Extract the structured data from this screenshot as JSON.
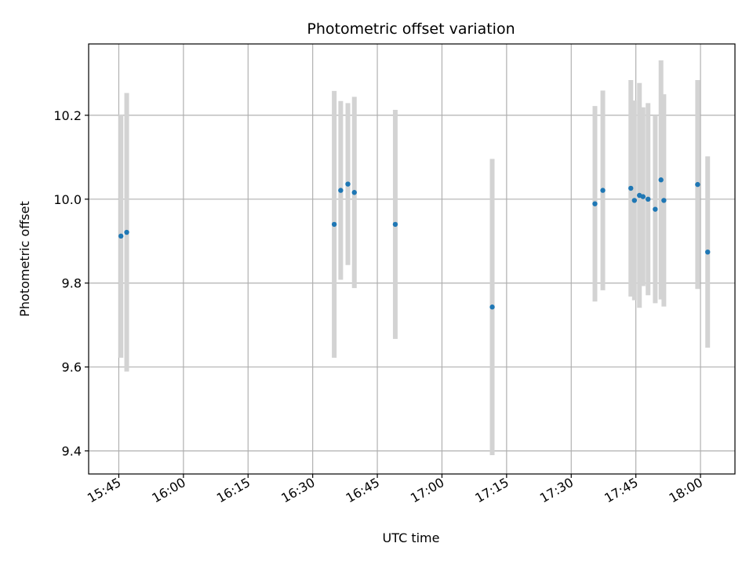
{
  "chart_data": {
    "type": "scatter",
    "title": "Photometric offset variation",
    "xlabel": "UTC time",
    "ylabel": "Photometric offset",
    "x_unit": "time HH:MM",
    "xlim": [
      "15:38",
      "18:08"
    ],
    "ylim": [
      9.345,
      10.37
    ],
    "x_ticks": [
      "15:45",
      "16:00",
      "16:15",
      "16:30",
      "16:45",
      "17:00",
      "17:15",
      "17:30",
      "17:45",
      "18:00"
    ],
    "y_ticks": [
      "9.4",
      "9.6",
      "9.8",
      "10.0",
      "10.2"
    ],
    "grid": true,
    "point_color": "#1f77b4",
    "errorbar_color": "#d3d3d3",
    "series": [
      {
        "points": [
          {
            "x": "15:45:30",
            "y": 9.912,
            "yerr": 0.29
          },
          {
            "x": "15:46:50",
            "y": 9.921,
            "yerr": 0.332
          },
          {
            "x": "16:35:00",
            "y": 9.94,
            "yerr": 0.318
          },
          {
            "x": "16:36:30",
            "y": 10.021,
            "yerr": 0.213
          },
          {
            "x": "16:38:10",
            "y": 10.036,
            "yerr": 0.193
          },
          {
            "x": "16:39:40",
            "y": 10.016,
            "yerr": 0.228
          },
          {
            "x": "16:49:10",
            "y": 9.94,
            "yerr": 0.273
          },
          {
            "x": "17:11:40",
            "y": 9.743,
            "yerr": 0.353
          },
          {
            "x": "17:35:30",
            "y": 9.989,
            "yerr": 0.233
          },
          {
            "x": "17:37:20",
            "y": 10.021,
            "yerr": 0.238
          },
          {
            "x": "17:43:50",
            "y": 10.026,
            "yerr": 0.258
          },
          {
            "x": "17:44:40",
            "y": 9.997,
            "yerr": 0.238
          },
          {
            "x": "17:45:50",
            "y": 10.009,
            "yerr": 0.268
          },
          {
            "x": "17:46:40",
            "y": 10.006,
            "yerr": 0.213
          },
          {
            "x": "17:47:50",
            "y": 10.0,
            "yerr": 0.229
          },
          {
            "x": "17:49:30",
            "y": 9.976,
            "yerr": 0.224
          },
          {
            "x": "17:50:50",
            "y": 10.046,
            "yerr": 0.285
          },
          {
            "x": "17:51:30",
            "y": 9.997,
            "yerr": 0.253
          },
          {
            "x": "17:59:20",
            "y": 10.035,
            "yerr": 0.249
          },
          {
            "x": "18:01:40",
            "y": 9.874,
            "yerr": 0.228
          }
        ]
      }
    ]
  }
}
